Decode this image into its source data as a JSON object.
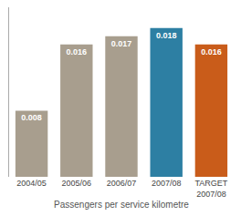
{
  "chart_data": {
    "type": "bar",
    "categories": [
      "2004/05",
      "2005/06",
      "2006/07",
      "2007/08",
      "TARGET\n2007/08"
    ],
    "values": [
      0.008,
      0.016,
      0.017,
      0.018,
      0.016
    ],
    "colors": [
      "#a89e8e",
      "#a89e8e",
      "#a89e8e",
      "#2d7fa3",
      "#c95c1a"
    ],
    "xlabel": "Passengers per service kilometre",
    "ylim": [
      0,
      0.0205
    ],
    "data_labels": true,
    "tick_labels": "x",
    "grid": false
  }
}
